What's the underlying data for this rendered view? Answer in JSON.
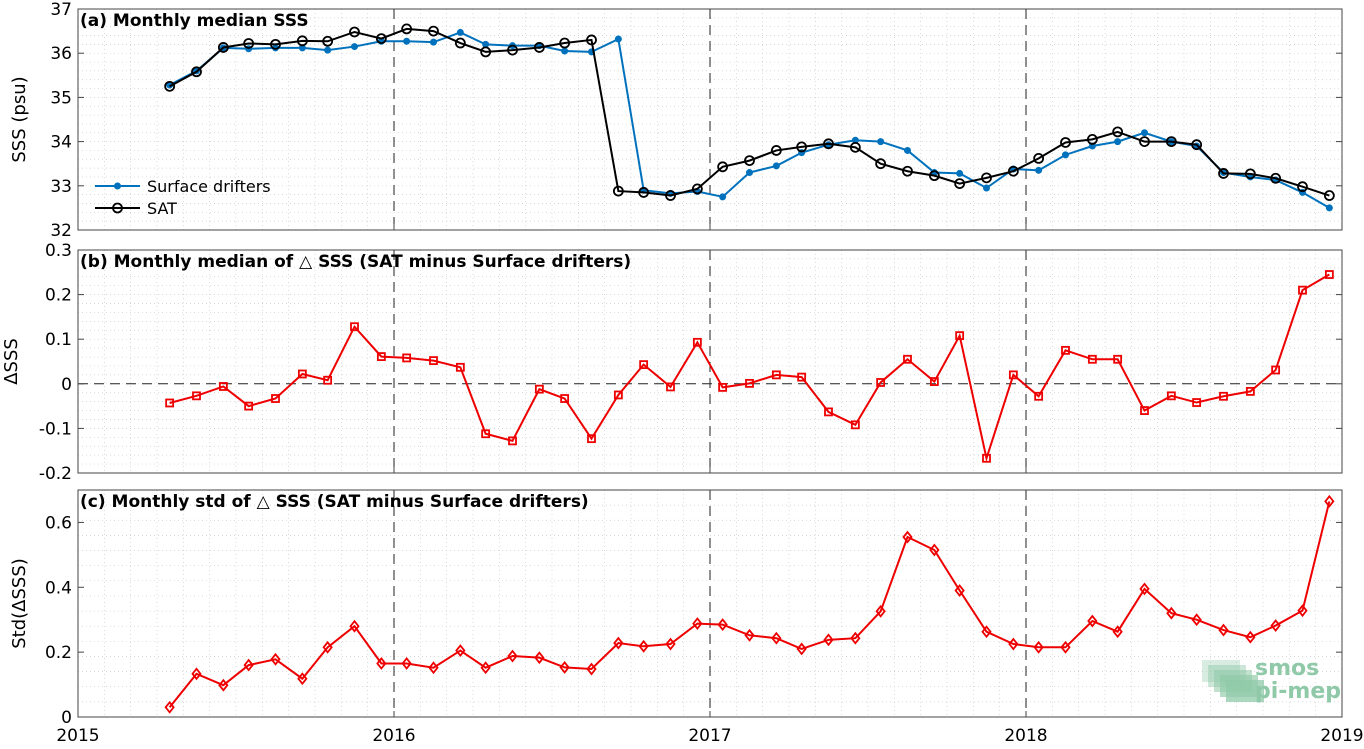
{
  "chart_data": [
    {
      "type": "line",
      "title": "(a) Monthly median SSS",
      "xlabel": "",
      "ylabel": "SSS (psu)",
      "xlim": [
        2015,
        2019
      ],
      "ylim": [
        32,
        37
      ],
      "x_ticks": [
        "2015",
        "2016",
        "2017",
        "2018",
        "2019"
      ],
      "y_ticks": [
        "32",
        "33",
        "34",
        "35",
        "36",
        "37"
      ],
      "grid": true,
      "legend": "lower-left",
      "x": [
        2015.29,
        2015.375,
        2015.46,
        2015.54,
        2015.625,
        2015.71,
        2015.79,
        2015.875,
        2015.96,
        2016.04,
        2016.125,
        2016.21,
        2016.29,
        2016.375,
        2016.46,
        2016.54,
        2016.625,
        2016.71,
        2016.79,
        2016.875,
        2016.96,
        2017.04,
        2017.125,
        2017.21,
        2017.29,
        2017.375,
        2017.46,
        2017.54,
        2017.625,
        2017.71,
        2017.79,
        2017.875,
        2017.96,
        2018.04,
        2018.125,
        2018.21,
        2018.29,
        2018.375,
        2018.46,
        2018.54,
        2018.625,
        2018.71,
        2018.79,
        2018.875,
        2018.96
      ],
      "series": [
        {
          "name": "Surface drifters",
          "color": "#0072bd",
          "marker": "dot",
          "values": [
            35.28,
            35.6,
            36.12,
            36.1,
            36.12,
            36.12,
            36.07,
            36.15,
            36.27,
            36.27,
            36.25,
            36.47,
            36.2,
            36.17,
            36.17,
            36.05,
            36.03,
            36.32,
            32.9,
            32.83,
            32.87,
            32.75,
            33.3,
            33.45,
            33.75,
            33.93,
            34.03,
            34.0,
            33.8,
            33.3,
            33.28,
            32.95,
            33.38,
            33.35,
            33.7,
            33.9,
            34.0,
            34.2,
            34.0,
            33.9,
            33.3,
            33.2,
            33.13,
            32.85,
            32.5
          ]
        },
        {
          "name": "SAT",
          "color": "#000000",
          "marker": "circle",
          "values": [
            35.25,
            35.58,
            36.13,
            36.22,
            36.2,
            36.28,
            36.27,
            36.48,
            36.33,
            36.55,
            36.5,
            36.23,
            36.03,
            36.07,
            36.13,
            36.23,
            36.3,
            32.88,
            32.85,
            32.78,
            32.93,
            33.43,
            33.57,
            33.8,
            33.88,
            33.95,
            33.87,
            33.5,
            33.33,
            33.23,
            33.05,
            33.18,
            33.33,
            33.62,
            33.98,
            34.05,
            34.22,
            34.0,
            34.0,
            33.93,
            33.28,
            33.27,
            33.17,
            32.98,
            32.78
          ]
        }
      ]
    },
    {
      "type": "line",
      "title": "(b) Monthly median of △ SSS (SAT minus Surface drifters)",
      "xlabel": "",
      "ylabel": "ΔSSS",
      "xlim": [
        2015,
        2019
      ],
      "ylim": [
        -0.2,
        0.3
      ],
      "x_ticks": [
        "2015",
        "2016",
        "2017",
        "2018",
        "2019"
      ],
      "y_ticks": [
        "-0.2",
        "-0.1",
        "0",
        "0.1",
        "0.2",
        "0.3"
      ],
      "grid": true,
      "x": [
        2015.29,
        2015.375,
        2015.46,
        2015.54,
        2015.625,
        2015.71,
        2015.79,
        2015.875,
        2015.96,
        2016.04,
        2016.125,
        2016.21,
        2016.29,
        2016.375,
        2016.46,
        2016.54,
        2016.625,
        2016.71,
        2016.79,
        2016.875,
        2016.96,
        2017.04,
        2017.125,
        2017.21,
        2017.29,
        2017.375,
        2017.46,
        2017.54,
        2017.625,
        2017.71,
        2017.79,
        2017.875,
        2017.96,
        2018.04,
        2018.125,
        2018.21,
        2018.29,
        2018.375,
        2018.46,
        2018.54,
        2018.625,
        2018.71,
        2018.79,
        2018.875,
        2018.96
      ],
      "series": [
        {
          "color": "#ee0000",
          "marker": "square",
          "values": [
            -0.043,
            -0.027,
            -0.006,
            -0.05,
            -0.033,
            0.022,
            0.008,
            0.128,
            0.061,
            0.058,
            0.052,
            0.037,
            -0.112,
            -0.128,
            -0.012,
            -0.033,
            -0.123,
            -0.025,
            0.043,
            -0.007,
            0.093,
            -0.008,
            0.001,
            0.02,
            0.015,
            -0.063,
            -0.092,
            0.003,
            0.055,
            0.005,
            0.108,
            -0.167,
            0.02,
            -0.028,
            0.075,
            0.055,
            0.055,
            -0.06,
            -0.027,
            -0.042,
            -0.028,
            -0.017,
            0.031,
            0.21,
            0.245
          ]
        }
      ]
    },
    {
      "type": "line",
      "title": "(c) Monthly std of △ SSS (SAT minus Surface drifters)",
      "xlabel": "",
      "ylabel": "Std(ΔSSS)",
      "xlim": [
        2015,
        2019
      ],
      "ylim": [
        0,
        0.7
      ],
      "x_ticks": [
        "2015",
        "2016",
        "2017",
        "2018",
        "2019"
      ],
      "y_ticks": [
        "0",
        "0.2",
        "0.4",
        "0.6"
      ],
      "grid": true,
      "x": [
        2015.29,
        2015.375,
        2015.46,
        2015.54,
        2015.625,
        2015.71,
        2015.79,
        2015.875,
        2015.96,
        2016.04,
        2016.125,
        2016.21,
        2016.29,
        2016.375,
        2016.46,
        2016.54,
        2016.625,
        2016.71,
        2016.79,
        2016.875,
        2016.96,
        2017.04,
        2017.125,
        2017.21,
        2017.29,
        2017.375,
        2017.46,
        2017.54,
        2017.625,
        2017.71,
        2017.79,
        2017.875,
        2017.96,
        2018.04,
        2018.125,
        2018.21,
        2018.29,
        2018.375,
        2018.46,
        2018.54,
        2018.625,
        2018.71,
        2018.79,
        2018.875,
        2018.96
      ],
      "series": [
        {
          "color": "#ee0000",
          "marker": "diamond",
          "values": [
            0.03,
            0.133,
            0.098,
            0.16,
            0.178,
            0.118,
            0.215,
            0.28,
            0.165,
            0.165,
            0.152,
            0.205,
            0.152,
            0.188,
            0.183,
            0.153,
            0.148,
            0.228,
            0.218,
            0.225,
            0.288,
            0.285,
            0.252,
            0.243,
            0.21,
            0.238,
            0.243,
            0.326,
            0.555,
            0.515,
            0.39,
            0.263,
            0.225,
            0.215,
            0.215,
            0.296,
            0.263,
            0.395,
            0.32,
            0.3,
            0.268,
            0.246,
            0.282,
            0.328,
            0.665
          ]
        }
      ]
    }
  ],
  "logo": {
    "line1": "smos",
    "line2": "pi-mep",
    "color": "#8fc9a8"
  }
}
